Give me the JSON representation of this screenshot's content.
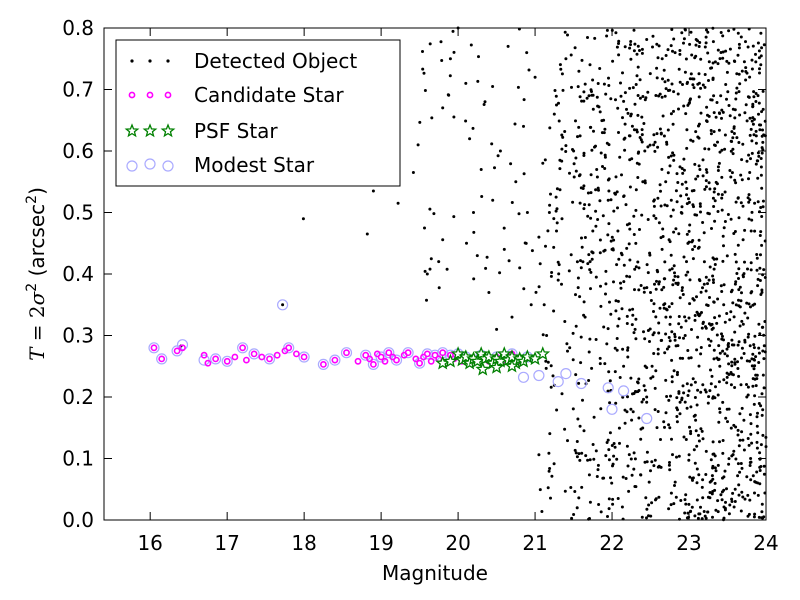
{
  "chart_data": {
    "type": "scatter",
    "xlabel": "Magnitude",
    "ylabel": {
      "T": "T",
      "eq": " = 2",
      "sigma": "σ",
      "sq": "2",
      "unit_open": " (arcsec",
      "unit_sq": "2",
      "unit_close": ")"
    },
    "xlim": [
      15.4,
      24.0
    ],
    "ylim": [
      0.0,
      0.8
    ],
    "x_ticks": [
      "16",
      "17",
      "18",
      "19",
      "20",
      "21",
      "22",
      "23",
      "24"
    ],
    "y_ticks": [
      "0.0",
      "0.1",
      "0.2",
      "0.3",
      "0.4",
      "0.5",
      "0.6",
      "0.7",
      "0.8"
    ],
    "grid": false,
    "legend_position": "top-left",
    "series": [
      {
        "name": "Detected Object",
        "marker": "dot",
        "color": "#000000",
        "distribution": "dense cloud of many points; sparse at magnitude < 21, very dense for 21–24 with T spanning 0.0–0.8; also present along the stellar locus",
        "points": [
          [
            16.4,
            0.283
          ],
          [
            17.72,
            0.35
          ],
          [
            17.99,
            0.49
          ],
          [
            18.82,
            0.465
          ],
          [
            18.9,
            0.535
          ],
          [
            19.22,
            0.515
          ],
          [
            19.42,
            0.565
          ],
          [
            19.48,
            0.61
          ],
          [
            19.6,
            0.4
          ],
          [
            19.8,
            0.67
          ],
          [
            19.9,
            0.75
          ],
          [
            20.0,
            0.8
          ],
          [
            20.1,
            0.71
          ],
          [
            20.15,
            0.62
          ],
          [
            20.2,
            0.5
          ],
          [
            20.25,
            0.43
          ],
          [
            20.3,
            0.57
          ],
          [
            20.35,
            0.68
          ],
          [
            20.4,
            0.37
          ],
          [
            20.45,
            0.52
          ],
          [
            20.5,
            0.31
          ],
          [
            20.55,
            0.6
          ],
          [
            20.6,
            0.44
          ],
          [
            20.65,
            0.77
          ],
          [
            20.7,
            0.33
          ],
          [
            20.75,
            0.55
          ],
          [
            20.8,
            0.41
          ],
          [
            20.85,
            0.64
          ],
          [
            20.9,
            0.5
          ],
          [
            20.95,
            0.35
          ],
          [
            21.0,
            0.72
          ],
          [
            21.05,
            0.46
          ],
          [
            21.1,
            0.58
          ],
          [
            21.15,
            0.3
          ],
          [
            21.2,
            0.53
          ],
          [
            21.25,
            0.66
          ],
          [
            21.3,
            0.39
          ],
          [
            21.35,
            0.49
          ],
          [
            21.4,
            0.75
          ],
          [
            21.45,
            0.28
          ],
          [
            21.5,
            0.6
          ],
          [
            21.55,
            0.42
          ],
          [
            21.6,
            0.54
          ],
          [
            21.65,
            0.33
          ],
          [
            21.7,
            0.69
          ],
          [
            21.75,
            0.47
          ],
          [
            21.8,
            0.57
          ],
          [
            21.85,
            0.38
          ],
          [
            21.9,
            0.63
          ],
          [
            21.95,
            0.52
          ],
          [
            22.0,
            0.44
          ],
          [
            22.05,
            0.34
          ],
          [
            22.1,
            0.59
          ],
          [
            22.15,
            0.25
          ],
          [
            22.2,
            0.48
          ],
          [
            22.25,
            0.66
          ],
          [
            22.3,
            0.31
          ],
          [
            22.35,
            0.41
          ],
          [
            22.4,
            0.55
          ],
          [
            22.45,
            0.2
          ],
          [
            22.5,
            0.37
          ],
          [
            22.55,
            0.51
          ],
          [
            22.6,
            0.27
          ],
          [
            22.65,
            0.44
          ],
          [
            22.7,
            0.33
          ],
          [
            22.75,
            0.15
          ],
          [
            22.8,
            0.39
          ],
          [
            22.85,
            0.24
          ],
          [
            22.9,
            0.5
          ],
          [
            22.95,
            0.3
          ],
          [
            23.0,
            0.21
          ],
          [
            23.05,
            0.36
          ],
          [
            23.1,
            0.12
          ],
          [
            23.15,
            0.27
          ],
          [
            23.2,
            0.42
          ],
          [
            23.25,
            0.19
          ],
          [
            23.3,
            0.31
          ],
          [
            23.35,
            0.08
          ],
          [
            23.4,
            0.25
          ],
          [
            23.45,
            0.35
          ],
          [
            23.5,
            0.16
          ],
          [
            23.55,
            0.22
          ],
          [
            23.6,
            0.05
          ],
          [
            23.65,
            0.29
          ],
          [
            23.7,
            0.13
          ],
          [
            23.75,
            0.2
          ],
          [
            23.8,
            0.1
          ],
          [
            23.85,
            0.26
          ],
          [
            23.9,
            0.04
          ],
          [
            23.95,
            0.17
          ],
          [
            22.08,
            0.035
          ],
          [
            22.5,
            0.08
          ],
          [
            22.2,
            0.12
          ],
          [
            21.95,
            0.13
          ]
        ]
      },
      {
        "name": "Candidate Star",
        "marker": "circle",
        "color": "#ff00ff",
        "points": [
          [
            16.05,
            0.28
          ],
          [
            16.15,
            0.262
          ],
          [
            16.35,
            0.275
          ],
          [
            16.42,
            0.28
          ],
          [
            16.7,
            0.268
          ],
          [
            16.75,
            0.255
          ],
          [
            16.85,
            0.262
          ],
          [
            17.0,
            0.258
          ],
          [
            17.1,
            0.265
          ],
          [
            17.2,
            0.28
          ],
          [
            17.25,
            0.26
          ],
          [
            17.35,
            0.27
          ],
          [
            17.45,
            0.265
          ],
          [
            17.55,
            0.262
          ],
          [
            17.65,
            0.268
          ],
          [
            17.75,
            0.275
          ],
          [
            17.8,
            0.28
          ],
          [
            17.9,
            0.27
          ],
          [
            18.0,
            0.265
          ],
          [
            18.25,
            0.253
          ],
          [
            18.4,
            0.26
          ],
          [
            18.55,
            0.272
          ],
          [
            18.7,
            0.258
          ],
          [
            18.8,
            0.268
          ],
          [
            18.85,
            0.262
          ],
          [
            18.9,
            0.253
          ],
          [
            18.95,
            0.27
          ],
          [
            19.0,
            0.265
          ],
          [
            19.05,
            0.258
          ],
          [
            19.1,
            0.272
          ],
          [
            19.15,
            0.265
          ],
          [
            19.2,
            0.26
          ],
          [
            19.3,
            0.268
          ],
          [
            19.35,
            0.272
          ],
          [
            19.45,
            0.262
          ],
          [
            19.5,
            0.255
          ],
          [
            19.55,
            0.265
          ],
          [
            19.6,
            0.27
          ],
          [
            19.65,
            0.258
          ],
          [
            19.7,
            0.268
          ],
          [
            19.75,
            0.262
          ],
          [
            19.8,
            0.272
          ],
          [
            19.85,
            0.255
          ],
          [
            19.9,
            0.268
          ],
          [
            19.95,
            0.262
          ],
          [
            20.0,
            0.27
          ],
          [
            20.05,
            0.258
          ],
          [
            20.1,
            0.265
          ],
          [
            20.2,
            0.262
          ],
          [
            20.3,
            0.268
          ],
          [
            20.4,
            0.258
          ],
          [
            20.5,
            0.265
          ],
          [
            20.6,
            0.26
          ],
          [
            20.7,
            0.27
          ],
          [
            20.8,
            0.258
          ],
          [
            20.9,
            0.265
          ],
          [
            21.0,
            0.262
          ]
        ]
      },
      {
        "name": "PSF Star",
        "marker": "star",
        "color": "#008000",
        "points": [
          [
            19.8,
            0.255
          ],
          [
            19.9,
            0.258
          ],
          [
            20.0,
            0.27
          ],
          [
            20.05,
            0.26
          ],
          [
            20.1,
            0.265
          ],
          [
            20.15,
            0.255
          ],
          [
            20.2,
            0.262
          ],
          [
            20.25,
            0.258
          ],
          [
            20.3,
            0.27
          ],
          [
            20.35,
            0.262
          ],
          [
            20.4,
            0.265
          ],
          [
            20.45,
            0.255
          ],
          [
            20.5,
            0.262
          ],
          [
            20.55,
            0.258
          ],
          [
            20.6,
            0.27
          ],
          [
            20.65,
            0.26
          ],
          [
            20.7,
            0.265
          ],
          [
            20.75,
            0.255
          ],
          [
            20.8,
            0.262
          ],
          [
            20.85,
            0.258
          ],
          [
            20.9,
            0.265
          ],
          [
            21.0,
            0.262
          ],
          [
            21.1,
            0.27
          ],
          [
            20.32,
            0.245
          ],
          [
            20.5,
            0.248
          ],
          [
            20.7,
            0.25
          ]
        ]
      },
      {
        "name": "Modest Star",
        "marker": "open-circle",
        "color": "#aaaaff",
        "points": [
          [
            16.05,
            0.28
          ],
          [
            16.15,
            0.262
          ],
          [
            16.35,
            0.275
          ],
          [
            16.42,
            0.285
          ],
          [
            16.7,
            0.26
          ],
          [
            16.85,
            0.262
          ],
          [
            17.0,
            0.258
          ],
          [
            17.2,
            0.28
          ],
          [
            17.35,
            0.27
          ],
          [
            17.55,
            0.262
          ],
          [
            17.72,
            0.35
          ],
          [
            17.8,
            0.28
          ],
          [
            18.0,
            0.265
          ],
          [
            18.25,
            0.253
          ],
          [
            18.4,
            0.26
          ],
          [
            18.55,
            0.272
          ],
          [
            18.8,
            0.268
          ],
          [
            18.9,
            0.253
          ],
          [
            19.0,
            0.265
          ],
          [
            19.1,
            0.272
          ],
          [
            19.2,
            0.26
          ],
          [
            19.35,
            0.272
          ],
          [
            19.5,
            0.255
          ],
          [
            19.6,
            0.27
          ],
          [
            19.7,
            0.268
          ],
          [
            19.8,
            0.272
          ],
          [
            19.9,
            0.268
          ],
          [
            20.0,
            0.27
          ],
          [
            20.1,
            0.265
          ],
          [
            20.3,
            0.268
          ],
          [
            20.5,
            0.265
          ],
          [
            20.7,
            0.27
          ],
          [
            20.85,
            0.232
          ],
          [
            20.9,
            0.265
          ],
          [
            21.05,
            0.235
          ],
          [
            21.3,
            0.225
          ],
          [
            21.4,
            0.238
          ],
          [
            21.6,
            0.222
          ],
          [
            21.95,
            0.215
          ],
          [
            22.0,
            0.18
          ],
          [
            22.15,
            0.21
          ],
          [
            22.45,
            0.165
          ]
        ]
      }
    ]
  }
}
